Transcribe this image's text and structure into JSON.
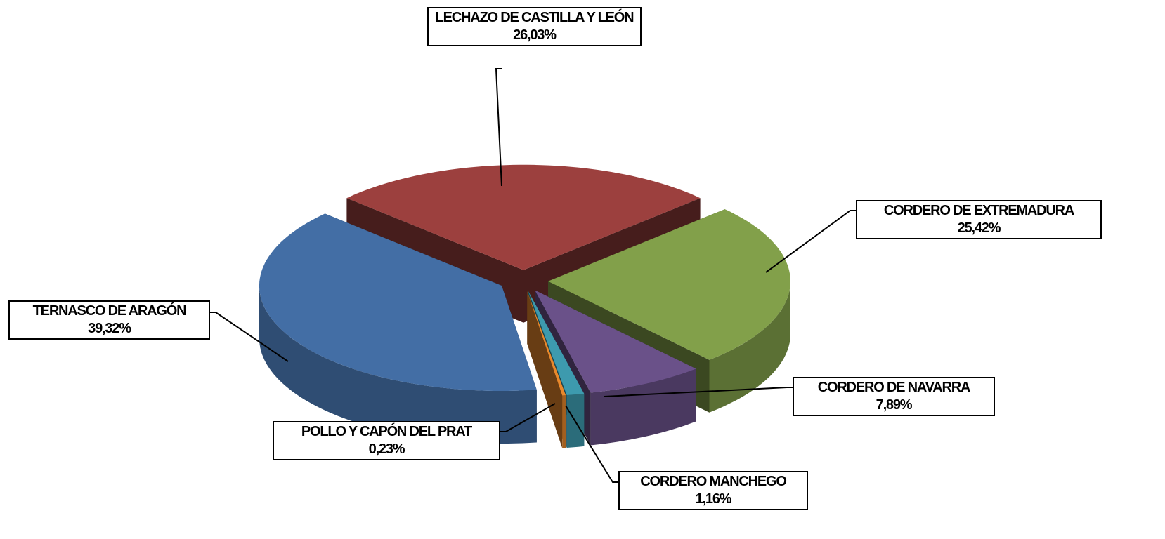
{
  "chart_data": {
    "type": "pie3d",
    "categories": [
      "LECHAZO DE CASTILLA Y LEÓN",
      "CORDERO DE EXTREMADURA",
      "CORDERO DE NAVARRA",
      "CORDERO MANCHEGO",
      "POLLO Y CAPÓN DEL PRAT",
      "TERNASCO DE ARAGÓN"
    ],
    "values": [
      26.03,
      25.42,
      7.89,
      1.16,
      0.23,
      39.32
    ],
    "value_labels": [
      "26,03%",
      "25,42%",
      "7,89%",
      "1,16%",
      "0,23%",
      "39,32%"
    ],
    "colors": [
      "#9c403e",
      "#82a04a",
      "#6a5189",
      "#3d9aae",
      "#e8882c",
      "#436ea5"
    ]
  }
}
